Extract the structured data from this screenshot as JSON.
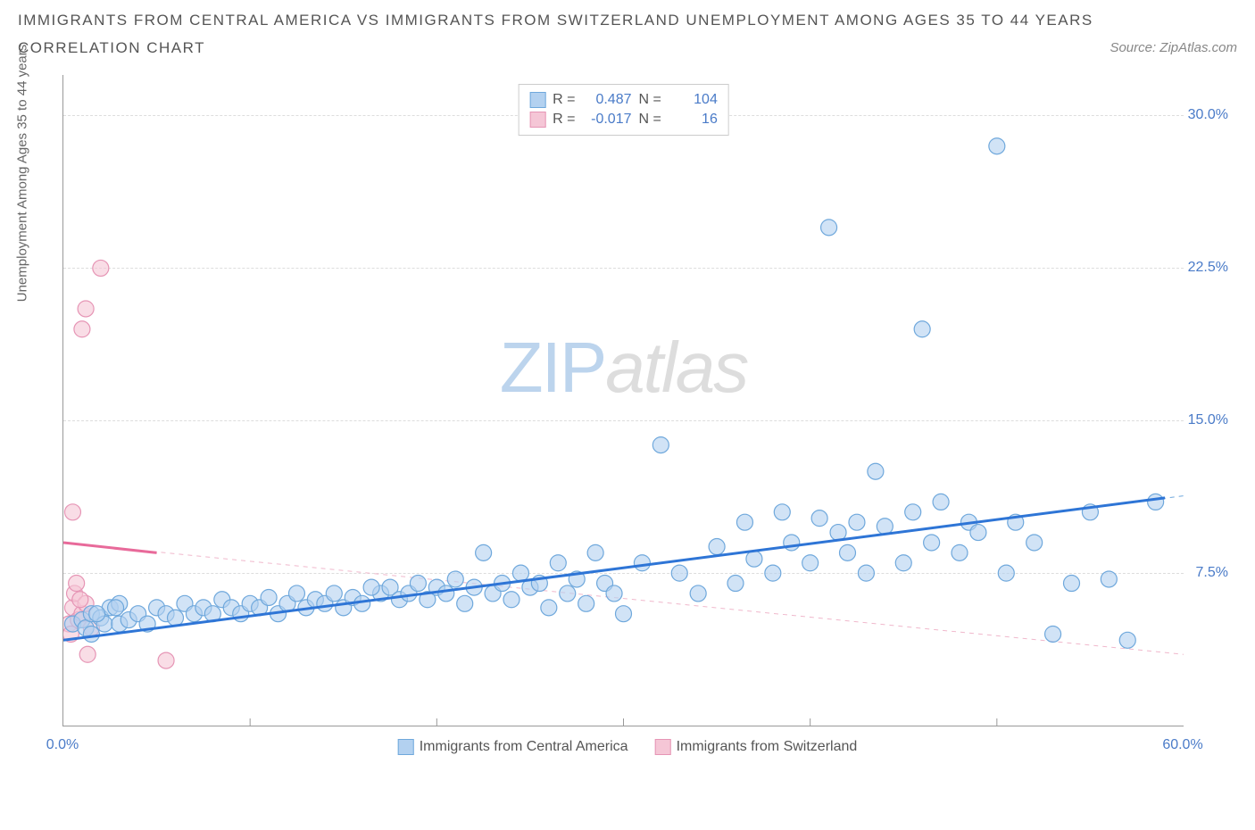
{
  "title": "IMMIGRANTS FROM CENTRAL AMERICA VS IMMIGRANTS FROM SWITZERLAND UNEMPLOYMENT AMONG AGES 35 TO 44 YEARS",
  "subtitle": "CORRELATION CHART",
  "source": "Source: ZipAtlas.com",
  "y_axis_label": "Unemployment Among Ages 35 to 44 years",
  "watermark_zip": "ZIP",
  "watermark_atlas": "atlas",
  "chart": {
    "type": "scatter",
    "xlim": [
      0,
      60
    ],
    "ylim": [
      0,
      32
    ],
    "x_ticks": [
      0,
      60
    ],
    "x_tick_labels": [
      "0.0%",
      "60.0%"
    ],
    "x_minor_ticks": [
      10,
      20,
      30,
      40,
      50
    ],
    "y_ticks": [
      7.5,
      15.0,
      22.5,
      30.0
    ],
    "y_tick_labels": [
      "7.5%",
      "15.0%",
      "22.5%",
      "30.0%"
    ],
    "grid_color": "#dddddd",
    "background_color": "#ffffff",
    "marker_radius": 9,
    "marker_stroke_width": 1.2,
    "trend_line_width_solid": 3,
    "trend_line_width_dashed": 1,
    "series": [
      {
        "name": "Immigrants from Central America",
        "fill": "#b3d1f0",
        "stroke": "#6fa8dc",
        "R": "0.487",
        "N": "104",
        "trend_solid": {
          "x1": 0,
          "y1": 4.2,
          "x2": 59,
          "y2": 11.2,
          "color": "#2e75d6"
        },
        "trend_dashed": {
          "x1": 0,
          "y1": 4.2,
          "x2": 60,
          "y2": 11.3,
          "color": "#6fa8dc"
        },
        "points": [
          [
            0.5,
            5.0
          ],
          [
            1.0,
            5.2
          ],
          [
            1.2,
            4.8
          ],
          [
            1.5,
            5.5
          ],
          [
            1.5,
            4.5
          ],
          [
            2.0,
            5.3
          ],
          [
            2.2,
            5.0
          ],
          [
            2.5,
            5.8
          ],
          [
            3.0,
            5.0
          ],
          [
            3.0,
            6.0
          ],
          [
            3.5,
            5.2
          ],
          [
            4.0,
            5.5
          ],
          [
            4.5,
            5.0
          ],
          [
            5.0,
            5.8
          ],
          [
            5.5,
            5.5
          ],
          [
            6.0,
            5.3
          ],
          [
            6.5,
            6.0
          ],
          [
            7.0,
            5.5
          ],
          [
            7.5,
            5.8
          ],
          [
            8.0,
            5.5
          ],
          [
            8.5,
            6.2
          ],
          [
            9.0,
            5.8
          ],
          [
            9.5,
            5.5
          ],
          [
            10.0,
            6.0
          ],
          [
            10.5,
            5.8
          ],
          [
            11.0,
            6.3
          ],
          [
            11.5,
            5.5
          ],
          [
            12.0,
            6.0
          ],
          [
            12.5,
            6.5
          ],
          [
            13.0,
            5.8
          ],
          [
            13.5,
            6.2
          ],
          [
            14.0,
            6.0
          ],
          [
            14.5,
            6.5
          ],
          [
            15.0,
            5.8
          ],
          [
            15.5,
            6.3
          ],
          [
            16.0,
            6.0
          ],
          [
            17.0,
            6.5
          ],
          [
            17.5,
            6.8
          ],
          [
            18.0,
            6.2
          ],
          [
            18.5,
            6.5
          ],
          [
            19.0,
            7.0
          ],
          [
            19.5,
            6.2
          ],
          [
            20.0,
            6.8
          ],
          [
            20.5,
            6.5
          ],
          [
            21.0,
            7.2
          ],
          [
            21.5,
            6.0
          ],
          [
            22.0,
            6.8
          ],
          [
            22.5,
            8.5
          ],
          [
            23.0,
            6.5
          ],
          [
            23.5,
            7.0
          ],
          [
            24.0,
            6.2
          ],
          [
            24.5,
            7.5
          ],
          [
            25.0,
            6.8
          ],
          [
            25.5,
            7.0
          ],
          [
            26.0,
            5.8
          ],
          [
            26.5,
            8.0
          ],
          [
            27.0,
            6.5
          ],
          [
            27.5,
            7.2
          ],
          [
            28.0,
            6.0
          ],
          [
            28.5,
            8.5
          ],
          [
            29.0,
            7.0
          ],
          [
            30.0,
            5.5
          ],
          [
            31.0,
            8.0
          ],
          [
            32.0,
            13.8
          ],
          [
            33.0,
            7.5
          ],
          [
            34.0,
            6.5
          ],
          [
            35.0,
            8.8
          ],
          [
            36.0,
            7.0
          ],
          [
            36.5,
            10.0
          ],
          [
            37.0,
            8.2
          ],
          [
            38.0,
            7.5
          ],
          [
            38.5,
            10.5
          ],
          [
            39.0,
            9.0
          ],
          [
            40.0,
            8.0
          ],
          [
            40.5,
            10.2
          ],
          [
            41.0,
            24.5
          ],
          [
            41.5,
            9.5
          ],
          [
            42.0,
            8.5
          ],
          [
            42.5,
            10.0
          ],
          [
            43.0,
            7.5
          ],
          [
            43.5,
            12.5
          ],
          [
            44.0,
            9.8
          ],
          [
            45.0,
            8.0
          ],
          [
            45.5,
            10.5
          ],
          [
            46.0,
            19.5
          ],
          [
            46.5,
            9.0
          ],
          [
            47.0,
            11.0
          ],
          [
            48.0,
            8.5
          ],
          [
            48.5,
            10.0
          ],
          [
            49.0,
            9.5
          ],
          [
            50.0,
            28.5
          ],
          [
            50.5,
            7.5
          ],
          [
            51.0,
            10.0
          ],
          [
            52.0,
            9.0
          ],
          [
            53.0,
            4.5
          ],
          [
            54.0,
            7.0
          ],
          [
            55.0,
            10.5
          ],
          [
            56.0,
            7.2
          ],
          [
            57.0,
            4.2
          ],
          [
            58.5,
            11.0
          ],
          [
            1.8,
            5.5
          ],
          [
            2.8,
            5.8
          ],
          [
            16.5,
            6.8
          ],
          [
            29.5,
            6.5
          ]
        ]
      },
      {
        "name": "Immigrants from Switzerland",
        "fill": "#f5c6d6",
        "stroke": "#e695b5",
        "R": "-0.017",
        "N": "16",
        "trend_solid": {
          "x1": 0,
          "y1": 9.0,
          "x2": 5,
          "y2": 8.5,
          "color": "#e86a9a"
        },
        "trend_dashed": {
          "x1": 0,
          "y1": 9.0,
          "x2": 60,
          "y2": 3.5,
          "color": "#f0b8cc"
        },
        "points": [
          [
            0.3,
            5.0
          ],
          [
            0.5,
            5.8
          ],
          [
            0.6,
            6.5
          ],
          [
            0.8,
            5.2
          ],
          [
            0.4,
            4.5
          ],
          [
            1.0,
            5.5
          ],
          [
            1.2,
            6.0
          ],
          [
            0.7,
            7.0
          ],
          [
            0.5,
            10.5
          ],
          [
            1.5,
            4.8
          ],
          [
            1.3,
            3.5
          ],
          [
            1.0,
            19.5
          ],
          [
            1.2,
            20.5
          ],
          [
            2.0,
            22.5
          ],
          [
            5.5,
            3.2
          ],
          [
            0.9,
            6.2
          ]
        ]
      }
    ]
  },
  "legend": {
    "series1_label": "Immigrants from Central America",
    "series2_label": "Immigrants from Switzerland",
    "R_label": "R =",
    "N_label": "N ="
  }
}
